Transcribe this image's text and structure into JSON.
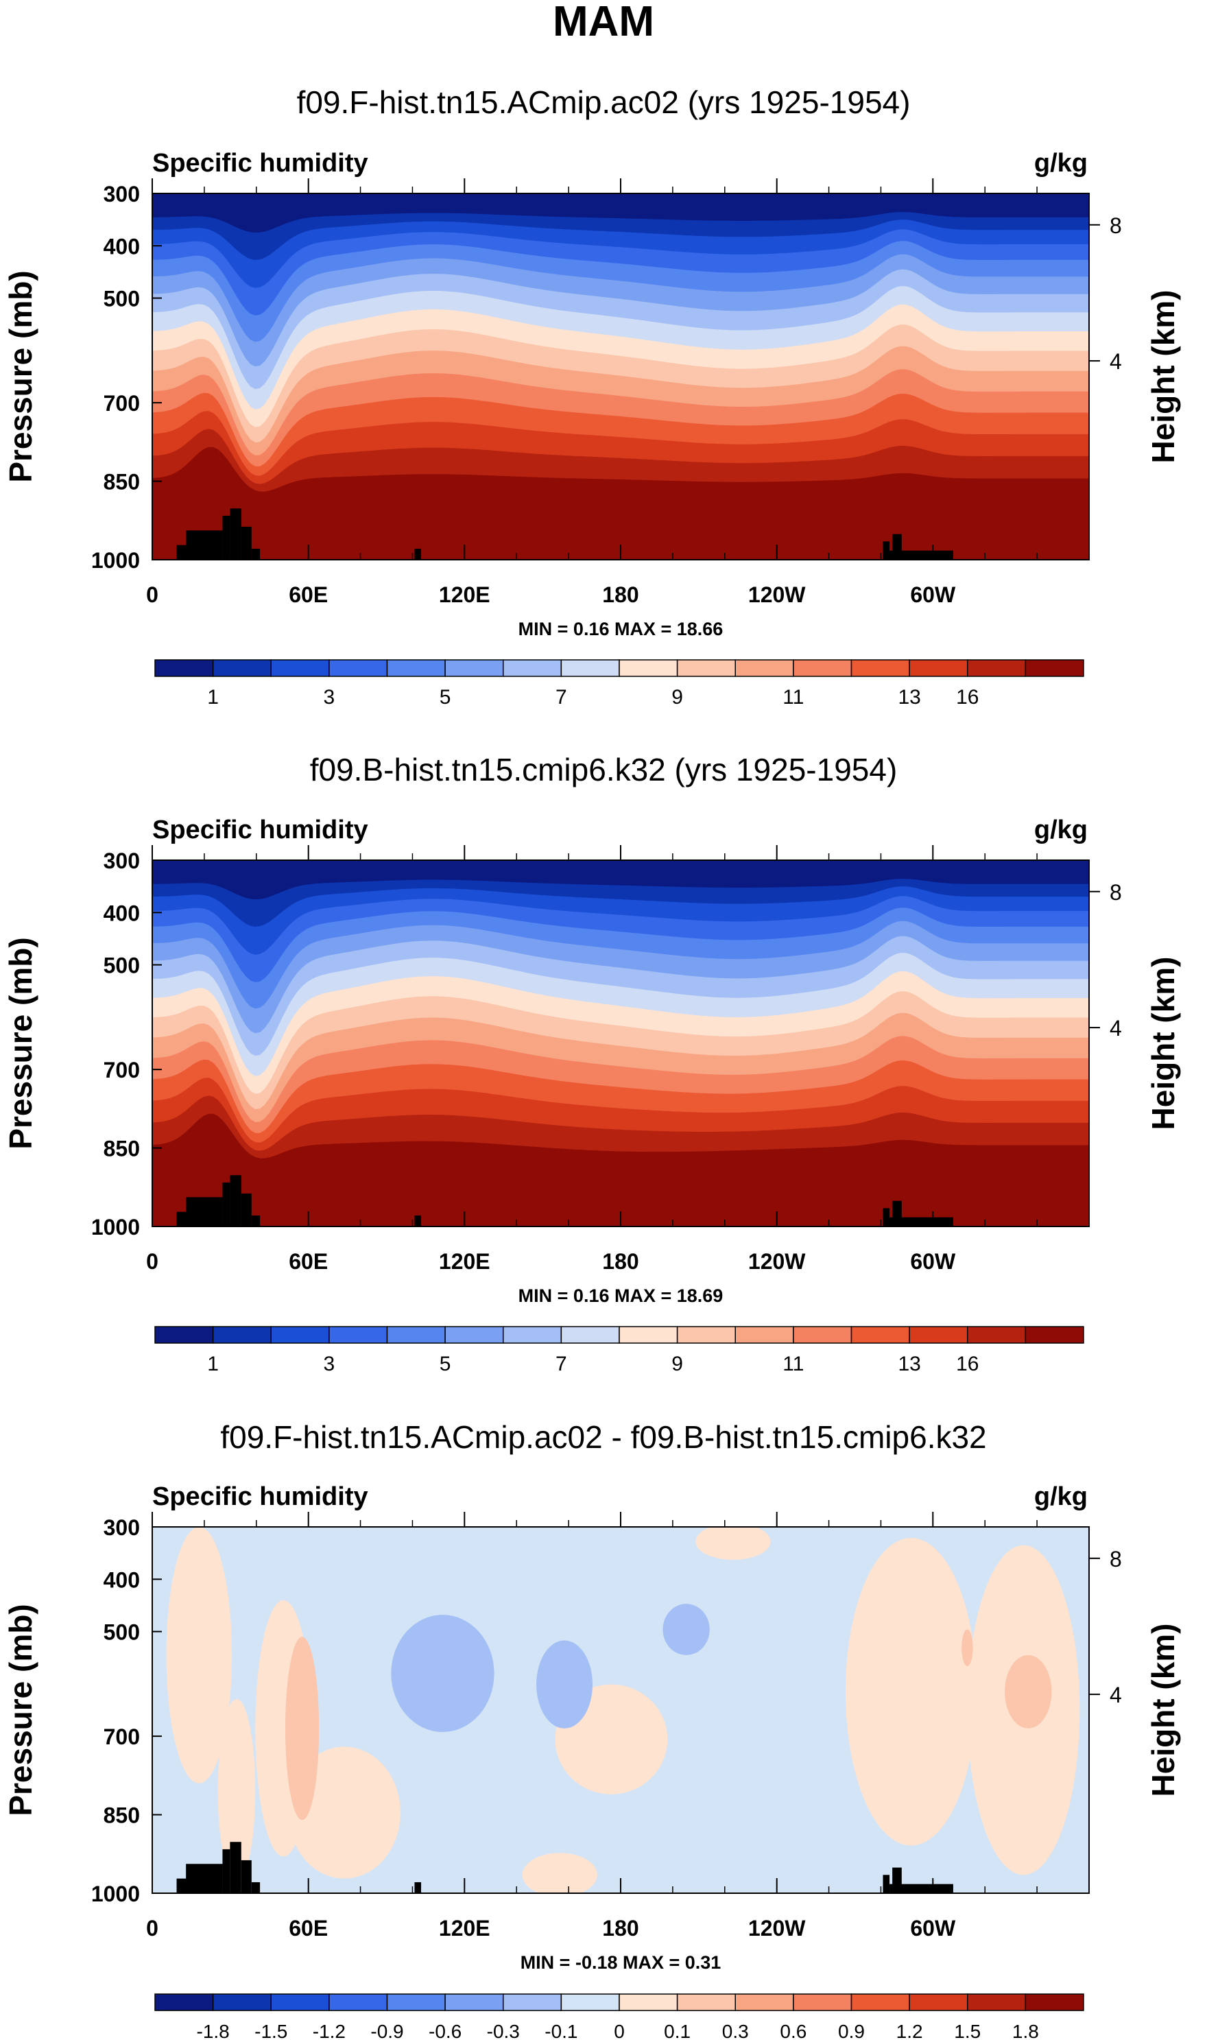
{
  "page_title": "MAM",
  "colors": {
    "land": "#000000",
    "abs_palette": [
      "#0a1a80",
      "#0d35b0",
      "#1a4fd6",
      "#3567e8",
      "#5585ef",
      "#7aa0f2",
      "#a3bff5",
      "#cfdcf5",
      "#fde3d0",
      "#fbc6ab",
      "#f8a584",
      "#f48261",
      "#ec5a34",
      "#d83b1c",
      "#b52210",
      "#8e0b06"
    ],
    "diff_palette": [
      "#0a1a80",
      "#0d35b0",
      "#1a4fd6",
      "#3567e8",
      "#5585ef",
      "#7aa0f2",
      "#a3bff5",
      "#d3e4f7",
      "#fde3d0",
      "#fbc6ab",
      "#f8a584",
      "#f48261",
      "#ec5a34",
      "#d83b1c",
      "#b52210",
      "#8e0b06"
    ]
  },
  "chart_data": [
    {
      "type": "heatmap",
      "title": "f09.F-hist.tn15.ACmip.ac02 (yrs 1925-1954)",
      "left_label": "Specific humidity",
      "right_label": "g/kg",
      "ylabel": "Pressure (mb)",
      "y2label": "Height (km)",
      "yticks": [
        "300",
        "400",
        "500",
        "700",
        "850",
        "1000"
      ],
      "y2ticks": [
        "8",
        "4"
      ],
      "xticks": [
        "0",
        "60E",
        "120E",
        "180",
        "120W",
        "60W"
      ],
      "stats": "MIN =   0.16   MAX =  18.66",
      "colorbar_labels": [
        "1",
        "3",
        "5",
        "7",
        "9",
        "11",
        "13",
        "16"
      ]
    },
    {
      "type": "heatmap",
      "title": "f09.B-hist.tn15.cmip6.k32 (yrs 1925-1954)",
      "left_label": "Specific humidity",
      "right_label": "g/kg",
      "ylabel": "Pressure (mb)",
      "y2label": "Height (km)",
      "yticks": [
        "300",
        "400",
        "500",
        "700",
        "850",
        "1000"
      ],
      "y2ticks": [
        "8",
        "4"
      ],
      "xticks": [
        "0",
        "60E",
        "120E",
        "180",
        "120W",
        "60W"
      ],
      "stats": "MIN =   0.16   MAX =  18.69",
      "colorbar_labels": [
        "1",
        "3",
        "5",
        "7",
        "9",
        "11",
        "13",
        "16"
      ]
    },
    {
      "type": "heatmap",
      "title": "f09.F-hist.tn15.ACmip.ac02 - f09.B-hist.tn15.cmip6.k32",
      "left_label": "Specific humidity",
      "right_label": "g/kg",
      "ylabel": "Pressure (mb)",
      "y2label": "Height (km)",
      "yticks": [
        "300",
        "400",
        "500",
        "700",
        "850",
        "1000"
      ],
      "y2ticks": [
        "8",
        "4"
      ],
      "xticks": [
        "0",
        "60E",
        "120E",
        "180",
        "120W",
        "60W"
      ],
      "stats": "MIN =  -0.18   MAX =   0.31",
      "colorbar_labels": [
        "-1.8",
        "-1.5",
        "-1.2",
        "-0.9",
        "-0.6",
        "-0.3",
        "-0.1",
        "0",
        "0.1",
        "0.3",
        "0.6",
        "0.9",
        "1.2",
        "1.5",
        "1.8"
      ]
    }
  ]
}
